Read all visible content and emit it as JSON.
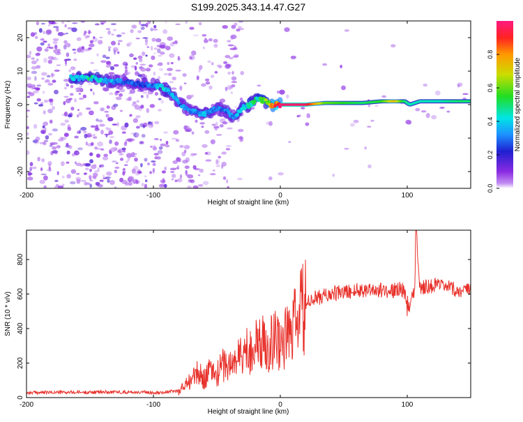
{
  "title": "S199.2025.343.14.47.G27",
  "chart_data": [
    {
      "type": "heatmap",
      "title": "S199.2025.343.14.47.G27",
      "xlabel": "Height of straight line (km)",
      "ylabel": "Frequency (Hz)",
      "xlim": [
        -200,
        150
      ],
      "ylim": [
        -25,
        25
      ],
      "xticks": [
        -200,
        -100,
        0,
        100
      ],
      "yticks": [
        -20,
        -10,
        0,
        10,
        20
      ],
      "colorbar": {
        "label": "Normalized spectral amplitude",
        "range": [
          0,
          1
        ],
        "ticks": [
          "0.0",
          "0.2",
          "0.4",
          "0.6",
          "0.8"
        ]
      },
      "ridge": {
        "x": [
          -165,
          -150,
          -135,
          -125,
          -110,
          -100,
          -92,
          -85,
          -78,
          -70,
          -60,
          -50,
          -42,
          -36,
          -30,
          -24,
          -18,
          -12,
          -8,
          -4,
          0,
          10,
          20,
          35,
          50,
          65,
          80,
          90,
          98,
          102,
          110,
          125,
          140,
          150
        ],
        "frequency": [
          8,
          8,
          7,
          7,
          6,
          6,
          5,
          3,
          0,
          -2,
          -3,
          -1,
          -2,
          -4,
          -1,
          0,
          2,
          1,
          0,
          0,
          0,
          0,
          0,
          0.5,
          0.5,
          0.5,
          1,
          1,
          1,
          0,
          1,
          1,
          1,
          1
        ],
        "amplitude": [
          0.4,
          0.45,
          0.35,
          0.3,
          0.25,
          0.3,
          0.4,
          0.35,
          0.3,
          0.3,
          0.35,
          0.3,
          0.3,
          0.3,
          0.4,
          0.45,
          0.5,
          0.55,
          0.7,
          0.85,
          0.98,
          0.98,
          0.97,
          0.6,
          0.55,
          0.5,
          0.55,
          0.75,
          0.5,
          0.45,
          0.45,
          0.45,
          0.5,
          0.5
        ]
      },
      "noise_region_x": [
        -200,
        -90
      ]
    },
    {
      "type": "line",
      "xlabel": "Height of straight line (km)",
      "ylabel": "SNR (10 * v/v)",
      "xlim": [
        -200,
        150
      ],
      "ylim": [
        0,
        970
      ],
      "xticks": [
        -200,
        -100,
        0,
        100
      ],
      "yticks": [
        0,
        200,
        400,
        600,
        800
      ],
      "series": [
        {
          "name": "SNR",
          "color": "#e8302a",
          "x": [
            -200,
            -180,
            -160,
            -140,
            -120,
            -100,
            -90,
            -80,
            -75,
            -70,
            -65,
            -60,
            -55,
            -50,
            -45,
            -40,
            -35,
            -30,
            -25,
            -20,
            -15,
            -10,
            -5,
            0,
            5,
            10,
            15,
            20,
            25,
            30,
            40,
            50,
            60,
            70,
            80,
            90,
            95,
            98,
            100,
            103,
            106,
            107,
            110,
            120,
            130,
            140,
            150
          ],
          "y": [
            28,
            30,
            30,
            32,
            32,
            30,
            32,
            40,
            70,
            110,
            140,
            110,
            160,
            130,
            200,
            180,
            220,
            250,
            280,
            300,
            310,
            320,
            340,
            330,
            350,
            400,
            480,
            530,
            570,
            580,
            600,
            610,
            620,
            630,
            620,
            620,
            640,
            600,
            560,
            570,
            620,
            970,
            640,
            650,
            640,
            620,
            620
          ]
        }
      ]
    }
  ]
}
